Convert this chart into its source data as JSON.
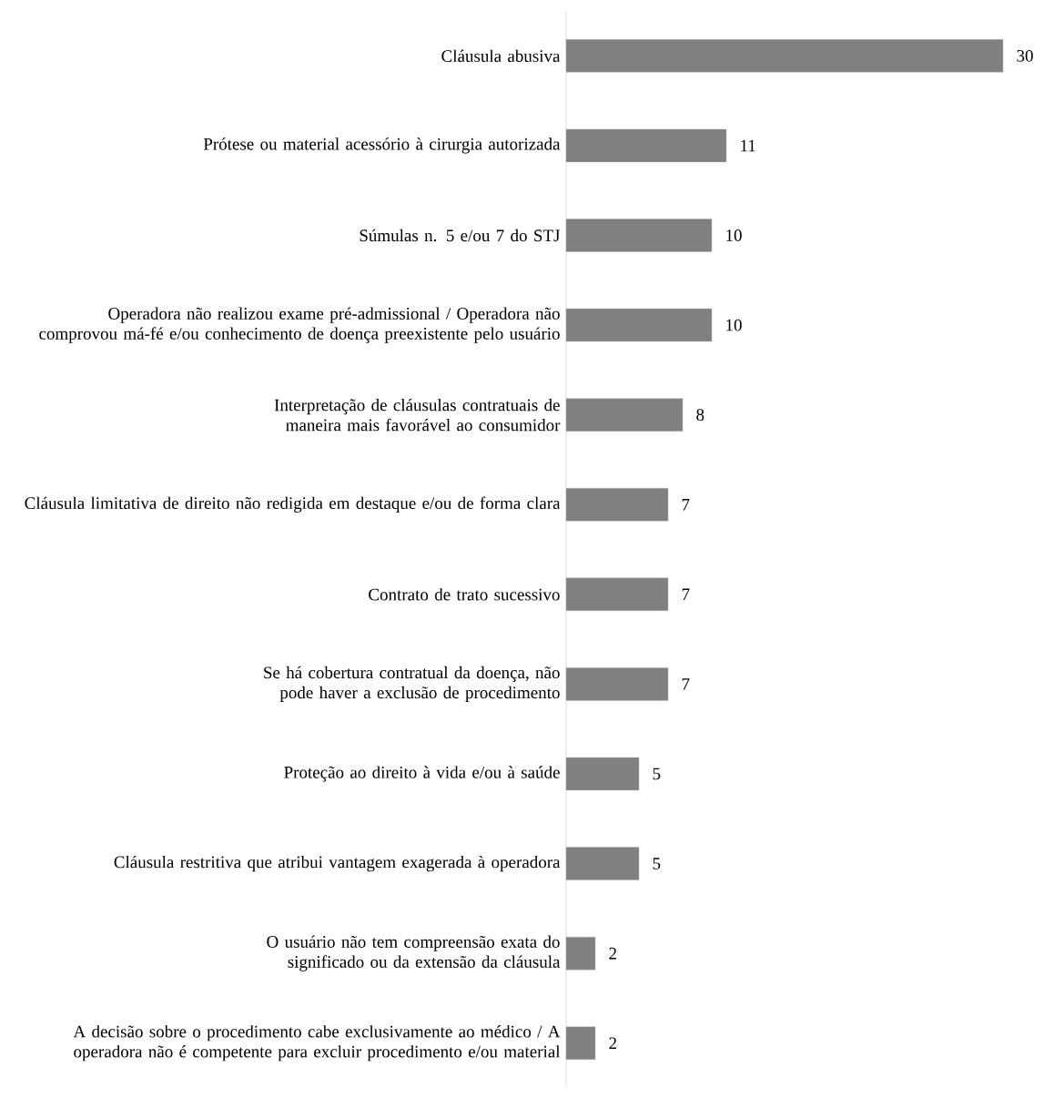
{
  "chart_data": {
    "type": "bar",
    "orientation": "horizontal",
    "data_labels": true,
    "color": "#808080",
    "categories": [
      "Cláusula abusiva",
      "Prótese ou material acessório à cirurgia autorizada",
      "Súmulas n. 5 e/ou 7 do STJ",
      "Operadora não realizou exame pré-admissional / Operadora não comprovou má-fé e/ou conhecimento de doença preexistente pelo usuário",
      "Interpretação de cláusulas contratuais de maneira mais favorável ao consumidor",
      "Cláusula limitativa de direito não redigida em destaque e/ou de forma clara",
      "Contrato de trato sucessivo",
      "Se há cobertura contratual da doença, não pode haver a exclusão de procedimento",
      "Proteção ao direito à vida e/ou à saúde",
      "Cláusula restritiva que atribui vantagem exagerada à operadora",
      "O usuário não tem compreensão exata do significado ou da extensão da cláusula",
      "A decisão sobre o procedimento cabe exclusivamente ao médico / A operadora não é competente para excluir procedimento e/ou material"
    ],
    "values": [
      30,
      11,
      10,
      10,
      8,
      7,
      7,
      7,
      5,
      5,
      2,
      2
    ]
  }
}
